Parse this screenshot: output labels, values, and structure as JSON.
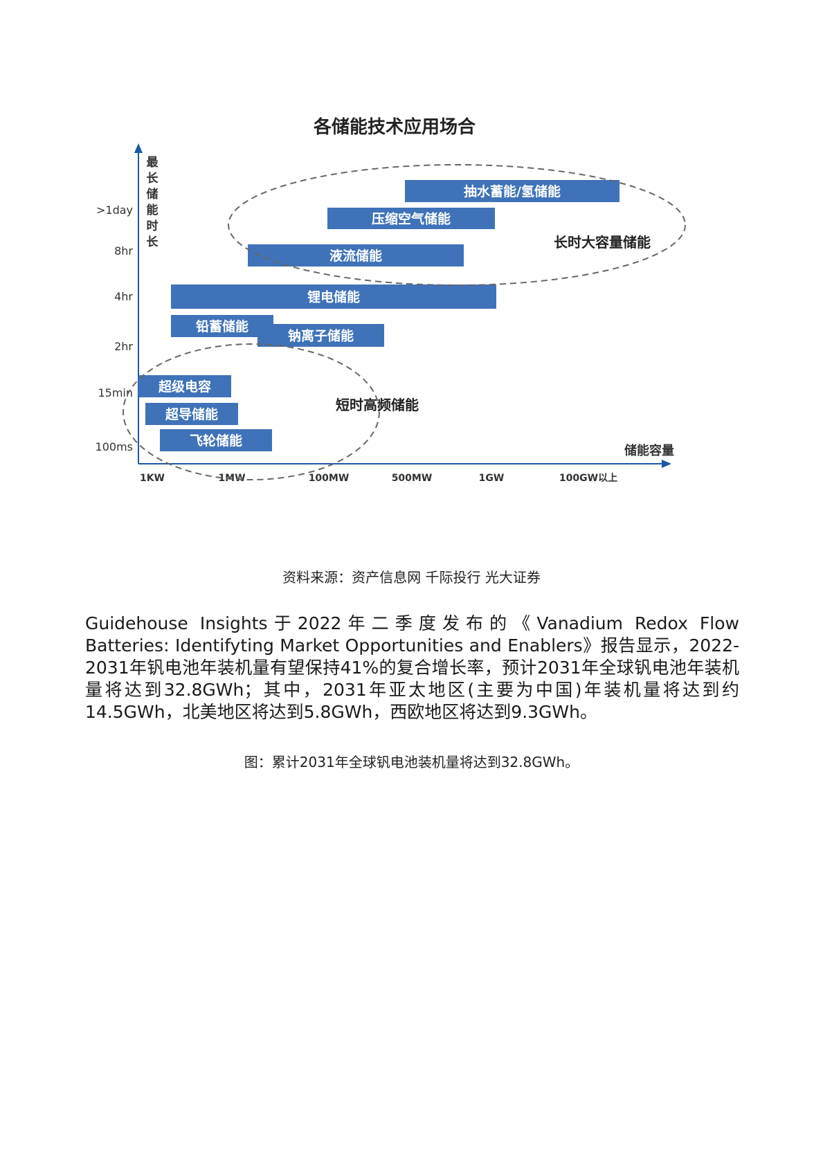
{
  "chart_data": {
    "type": "bar",
    "title": "各储能技术应用场合",
    "ylabel": "最长储能时长",
    "xlabel": "储能容量",
    "y_ticks": [
      ">1day",
      "8hr",
      "4hr",
      "2hr",
      "15min",
      "100ms"
    ],
    "x_ticks": [
      "1KW",
      "1MW",
      "100MW",
      "500MW",
      "1GW",
      "100GW以上"
    ],
    "bars": [
      {
        "label": "抽水蓄能/氢储能",
        "capacity_from": "500MW",
        "capacity_to": "100GW以上",
        "duration": ">1day"
      },
      {
        "label": "压缩空气储能",
        "capacity_from": "100MW",
        "capacity_to": "1GW",
        "duration": ">1day"
      },
      {
        "label": "液流储能",
        "capacity_from": "1MW",
        "capacity_to": "1GW",
        "duration": "8hr"
      },
      {
        "label": "锂电储能",
        "capacity_from": "1KW",
        "capacity_to": "1GW",
        "duration": "4hr"
      },
      {
        "label": "铅蓄储能",
        "capacity_from": "1KW",
        "capacity_to": "1MW",
        "duration": "2hr"
      },
      {
        "label": "钠离子储能",
        "capacity_from": "1MW",
        "capacity_to": "100MW",
        "duration": "2hr"
      },
      {
        "label": "超级电容",
        "capacity_from": "1KW",
        "capacity_to": "1MW",
        "duration": "15min"
      },
      {
        "label": "超导储能",
        "capacity_from": "1KW",
        "capacity_to": "1MW",
        "duration": "15min"
      },
      {
        "label": "飞轮储能",
        "capacity_from": "1KW",
        "capacity_to": "1MW",
        "duration": "100ms"
      }
    ],
    "groups": [
      "长时大容量储能",
      "短时高频储能"
    ],
    "bar_color": "#3f72b8",
    "grid": false
  },
  "source_text": "资料来源：资产信息网 千际投行 光大证券",
  "paragraph": "Guidehouse Insights于2022年二季度发布的《Vanadium Redox Flow Batteries: Identifyting Market Opportunities and Enablers》报告显示，2022-2031年钒电池年装机量有望保持41%的复合增长率，预计2031年全球钒电池年装机量将达到32.8GWh；其中，2031年亚太地区(主要为中国)年装机量将达到约14.5GWh，北美地区将达到5.8GWh，西欧地区将达到9.3GWh。",
  "caption": "图：累计2031年全球钒电池装机量将达到32.8GWh。"
}
